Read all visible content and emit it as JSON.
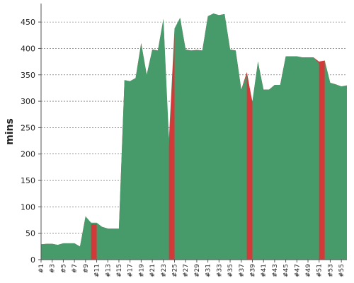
{
  "chart_data": {
    "type": "area",
    "ylabel": "mins",
    "xlabel": "",
    "title": "",
    "ylim": [
      0,
      485
    ],
    "yticks": [
      0,
      50,
      100,
      150,
      200,
      250,
      300,
      350,
      400,
      450
    ],
    "x_tick_labels": [
      "#1",
      "#3",
      "#5",
      "#7",
      "#9",
      "#11",
      "#13",
      "#15",
      "#17",
      "#19",
      "#21",
      "#23",
      "#25",
      "#27",
      "#29",
      "#31",
      "#33",
      "#35",
      "#37",
      "#39",
      "#41",
      "#43",
      "#45",
      "#47",
      "#49",
      "#51",
      "#53",
      "#55"
    ],
    "grid": true,
    "colors": {
      "green": "#479b6b",
      "red": "#d53838"
    },
    "series": [
      {
        "values": [
          29,
          30,
          30,
          28,
          31,
          31,
          31,
          25,
          82,
          70,
          70,
          62,
          59,
          59,
          59,
          340,
          338,
          344,
          410,
          350,
          398,
          396,
          456,
          230,
          438,
          458,
          398,
          396,
          397,
          396,
          461,
          466,
          463,
          465,
          398,
          396,
          322,
          350,
          300,
          375,
          322,
          322,
          331,
          331,
          385,
          385,
          385,
          383,
          383,
          383,
          372,
          377,
          335,
          332,
          328,
          330
        ]
      },
      {
        "values": [
          29,
          30,
          30,
          28,
          31,
          31,
          31,
          25,
          82,
          67,
          67,
          62,
          59,
          59,
          59,
          340,
          338,
          344,
          410,
          350,
          398,
          396,
          456,
          215,
          430,
          458,
          398,
          396,
          397,
          396,
          461,
          466,
          463,
          465,
          398,
          396,
          322,
          355,
          297,
          375,
          322,
          322,
          331,
          331,
          385,
          385,
          385,
          383,
          383,
          383,
          375,
          377,
          335,
          332,
          328,
          330
        ]
      }
    ]
  }
}
